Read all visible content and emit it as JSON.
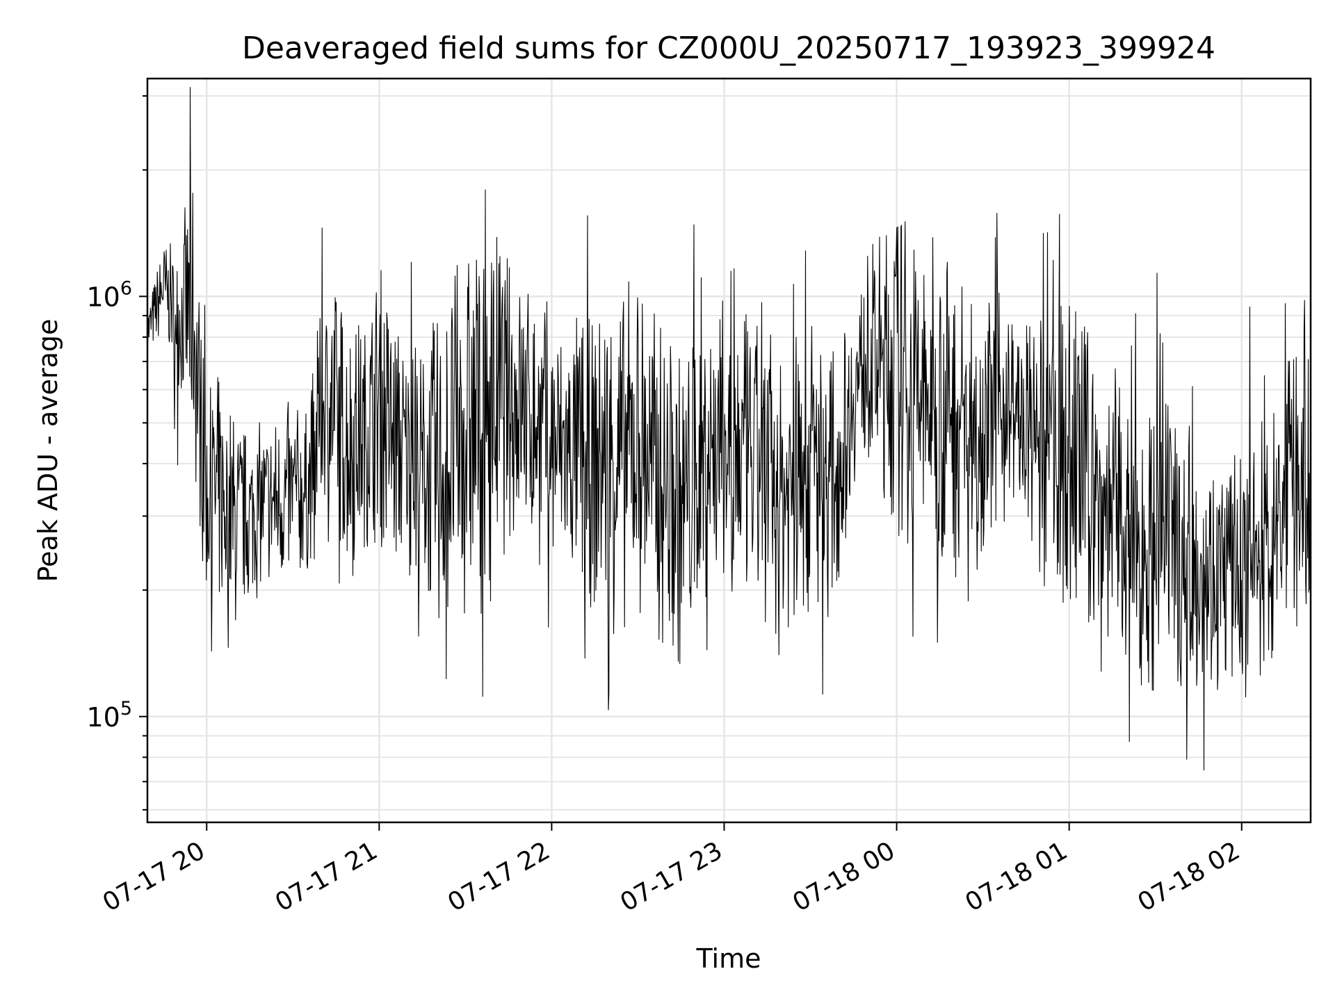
{
  "chart_data": {
    "type": "line",
    "title": "Deaveraged field sums for CZ000U_20250717_193923_399924",
    "xlabel": "Time",
    "ylabel": "Peak ADU - average",
    "y_scale": "log",
    "ylim": [
      56000,
      3300000
    ],
    "y_major_ticks": [
      {
        "value": 100000,
        "base": "10",
        "exp": "5"
      },
      {
        "value": 1000000,
        "base": "10",
        "exp": "6"
      }
    ],
    "xlim": [
      "2025-07-17 19:39:23",
      "2025-07-18 02:24:00"
    ],
    "x_ticks": [
      {
        "time": "2025-07-17 20:00",
        "label": "07-17 20"
      },
      {
        "time": "2025-07-17 21:00",
        "label": "07-17 21"
      },
      {
        "time": "2025-07-17 22:00",
        "label": "07-17 22"
      },
      {
        "time": "2025-07-17 23:00",
        "label": "07-17 23"
      },
      {
        "time": "2025-07-18 00:00",
        "label": "07-18 00"
      },
      {
        "time": "2025-07-18 01:00",
        "label": "07-18 01"
      },
      {
        "time": "2025-07-18 02:00",
        "label": "07-18 02"
      }
    ],
    "grid": true,
    "line_color": "#000000",
    "series": [
      {
        "x": [
          "2025-07-17 19:40",
          "2025-07-17 19:45",
          "2025-07-17 19:50",
          "2025-07-17 19:55",
          "2025-07-17 20:00",
          "2025-07-17 20:05",
          "2025-07-17 20:10",
          "2025-07-17 20:15",
          "2025-07-17 20:20",
          "2025-07-17 20:25",
          "2025-07-17 20:30",
          "2025-07-17 20:35",
          "2025-07-17 20:40",
          "2025-07-17 20:45",
          "2025-07-17 20:50",
          "2025-07-17 20:55",
          "2025-07-17 21:00",
          "2025-07-17 21:05",
          "2025-07-17 21:10",
          "2025-07-17 21:15",
          "2025-07-17 21:20",
          "2025-07-17 21:25",
          "2025-07-17 21:30",
          "2025-07-17 21:35",
          "2025-07-17 21:40",
          "2025-07-17 21:45",
          "2025-07-17 21:50",
          "2025-07-17 21:55",
          "2025-07-17 22:00",
          "2025-07-17 22:05",
          "2025-07-17 22:10",
          "2025-07-17 22:15",
          "2025-07-17 22:20",
          "2025-07-17 22:25",
          "2025-07-17 22:30",
          "2025-07-17 22:35",
          "2025-07-17 22:40",
          "2025-07-17 22:45",
          "2025-07-17 22:50",
          "2025-07-17 22:55",
          "2025-07-17 23:00",
          "2025-07-17 23:05",
          "2025-07-17 23:10",
          "2025-07-17 23:15",
          "2025-07-17 23:20",
          "2025-07-17 23:25",
          "2025-07-17 23:30",
          "2025-07-17 23:35",
          "2025-07-17 23:40",
          "2025-07-17 23:45",
          "2025-07-17 23:50",
          "2025-07-17 23:55",
          "2025-07-18 00:00",
          "2025-07-18 00:05",
          "2025-07-18 00:10",
          "2025-07-18 00:15",
          "2025-07-18 00:20",
          "2025-07-18 00:25",
          "2025-07-18 00:30",
          "2025-07-18 00:35",
          "2025-07-18 00:40",
          "2025-07-18 00:45",
          "2025-07-18 00:50",
          "2025-07-18 00:55",
          "2025-07-18 01:00",
          "2025-07-18 01:05",
          "2025-07-18 01:10",
          "2025-07-18 01:15",
          "2025-07-18 01:20",
          "2025-07-18 01:25",
          "2025-07-18 01:30",
          "2025-07-18 01:35",
          "2025-07-18 01:40",
          "2025-07-18 01:45",
          "2025-07-18 01:50",
          "2025-07-18 01:55",
          "2025-07-18 02:00",
          "2025-07-18 02:05",
          "2025-07-18 02:10",
          "2025-07-18 02:15",
          "2025-07-18 02:20",
          "2025-07-18 02:24"
        ],
        "y_high": [
          1000000,
          1400000,
          1300000,
          2200000,
          600000,
          700000,
          550000,
          500000,
          520000,
          560000,
          580000,
          550000,
          1000000,
          1100000,
          1000000,
          900000,
          1300000,
          1000000,
          800000,
          800000,
          950000,
          1200000,
          1400000,
          1500000,
          1700000,
          1300000,
          1200000,
          1100000,
          1000000,
          900000,
          1000000,
          900000,
          1200000,
          1100000,
          1300000,
          1000000,
          900000,
          800000,
          900000,
          1100000,
          1000000,
          1000000,
          900000,
          900000,
          700000,
          900000,
          1100000,
          800000,
          800000,
          1000000,
          1300000,
          1500000,
          1800000,
          1600000,
          1400000,
          1500000,
          1300000,
          1200000,
          1000000,
          1100000,
          1000000,
          900000,
          900000,
          1000000,
          1100000,
          1000000,
          700000,
          700000,
          600000,
          550000,
          600000,
          550000,
          500000,
          500000,
          450000,
          450000,
          450000,
          500000,
          600000,
          700000,
          800000,
          900000
        ],
        "y_low": [
          700000,
          800000,
          600000,
          400000,
          180000,
          160000,
          150000,
          180000,
          200000,
          190000,
          200000,
          210000,
          300000,
          250000,
          200000,
          250000,
          250000,
          200000,
          220000,
          190000,
          150000,
          150000,
          160000,
          170000,
          190000,
          250000,
          250000,
          220000,
          200000,
          200000,
          180000,
          170000,
          150000,
          150000,
          170000,
          150000,
          130000,
          120000,
          140000,
          170000,
          200000,
          180000,
          170000,
          160000,
          160000,
          150000,
          150000,
          160000,
          200000,
          350000,
          400000,
          300000,
          250000,
          230000,
          220000,
          200000,
          200000,
          220000,
          250000,
          280000,
          300000,
          250000,
          200000,
          180000,
          160000,
          150000,
          150000,
          140000,
          130000,
          120000,
          110000,
          120000,
          110000,
          110000,
          110000,
          110000,
          105000,
          110000,
          120000,
          150000,
          160000,
          180000
        ]
      }
    ]
  }
}
